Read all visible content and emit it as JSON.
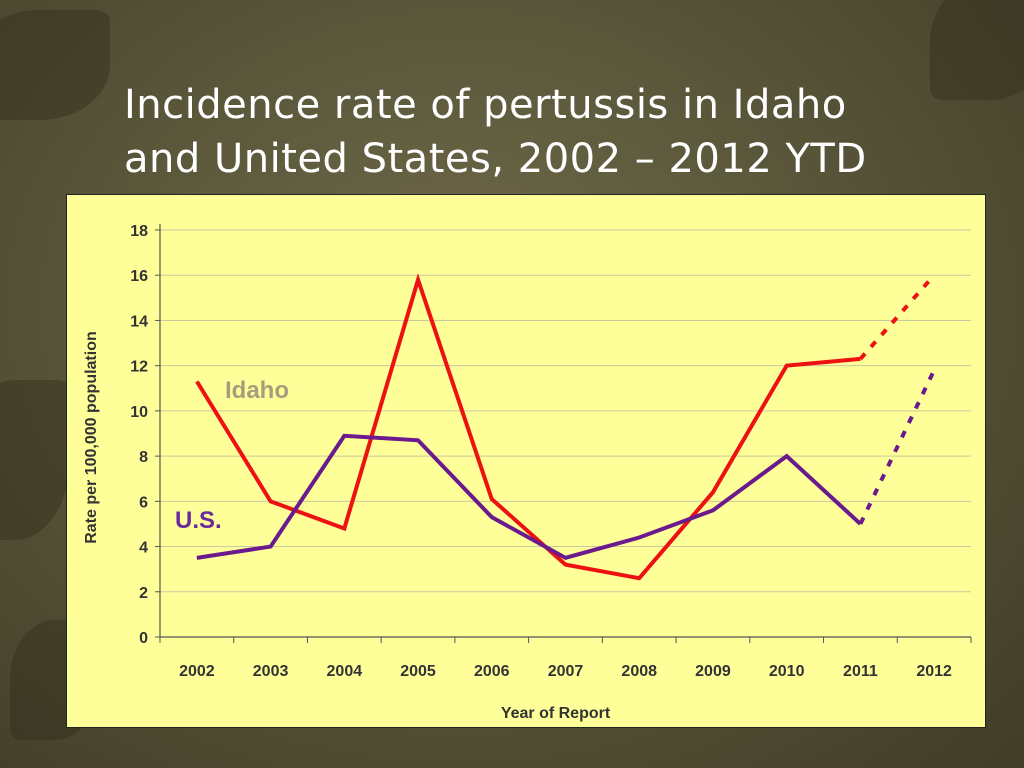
{
  "slide": {
    "title_line1": "Incidence rate of pertussis in Idaho",
    "title_line2": "and United States, 2002 – 2012 YTD"
  },
  "chart_data": {
    "type": "line",
    "x": [
      "2002",
      "2003",
      "2004",
      "2005",
      "2006",
      "2007",
      "2008",
      "2009",
      "2010",
      "2011",
      "2012"
    ],
    "xlabel": "Year of Report",
    "ylabel": "Rate per 100,000 population",
    "ylim": [
      0,
      18
    ],
    "yticks": [
      0,
      2,
      4,
      6,
      8,
      10,
      12,
      14,
      16,
      18
    ],
    "grid": true,
    "series": [
      {
        "name": "Idaho",
        "color": "#ee1111",
        "label_color": "#a89c7a",
        "values": [
          11.3,
          6.0,
          4.8,
          15.8,
          6.1,
          3.2,
          2.6,
          6.4,
          12.0,
          12.3,
          16.0
        ],
        "dashed_from_index": 9
      },
      {
        "name": "U.S.",
        "color": "#6a1a8c",
        "label_color": "#6a2a9c",
        "values": [
          3.5,
          4.0,
          8.9,
          8.7,
          5.3,
          3.5,
          4.4,
          5.6,
          8.0,
          5.0,
          11.8
        ],
        "dashed_from_index": 9
      }
    ]
  }
}
